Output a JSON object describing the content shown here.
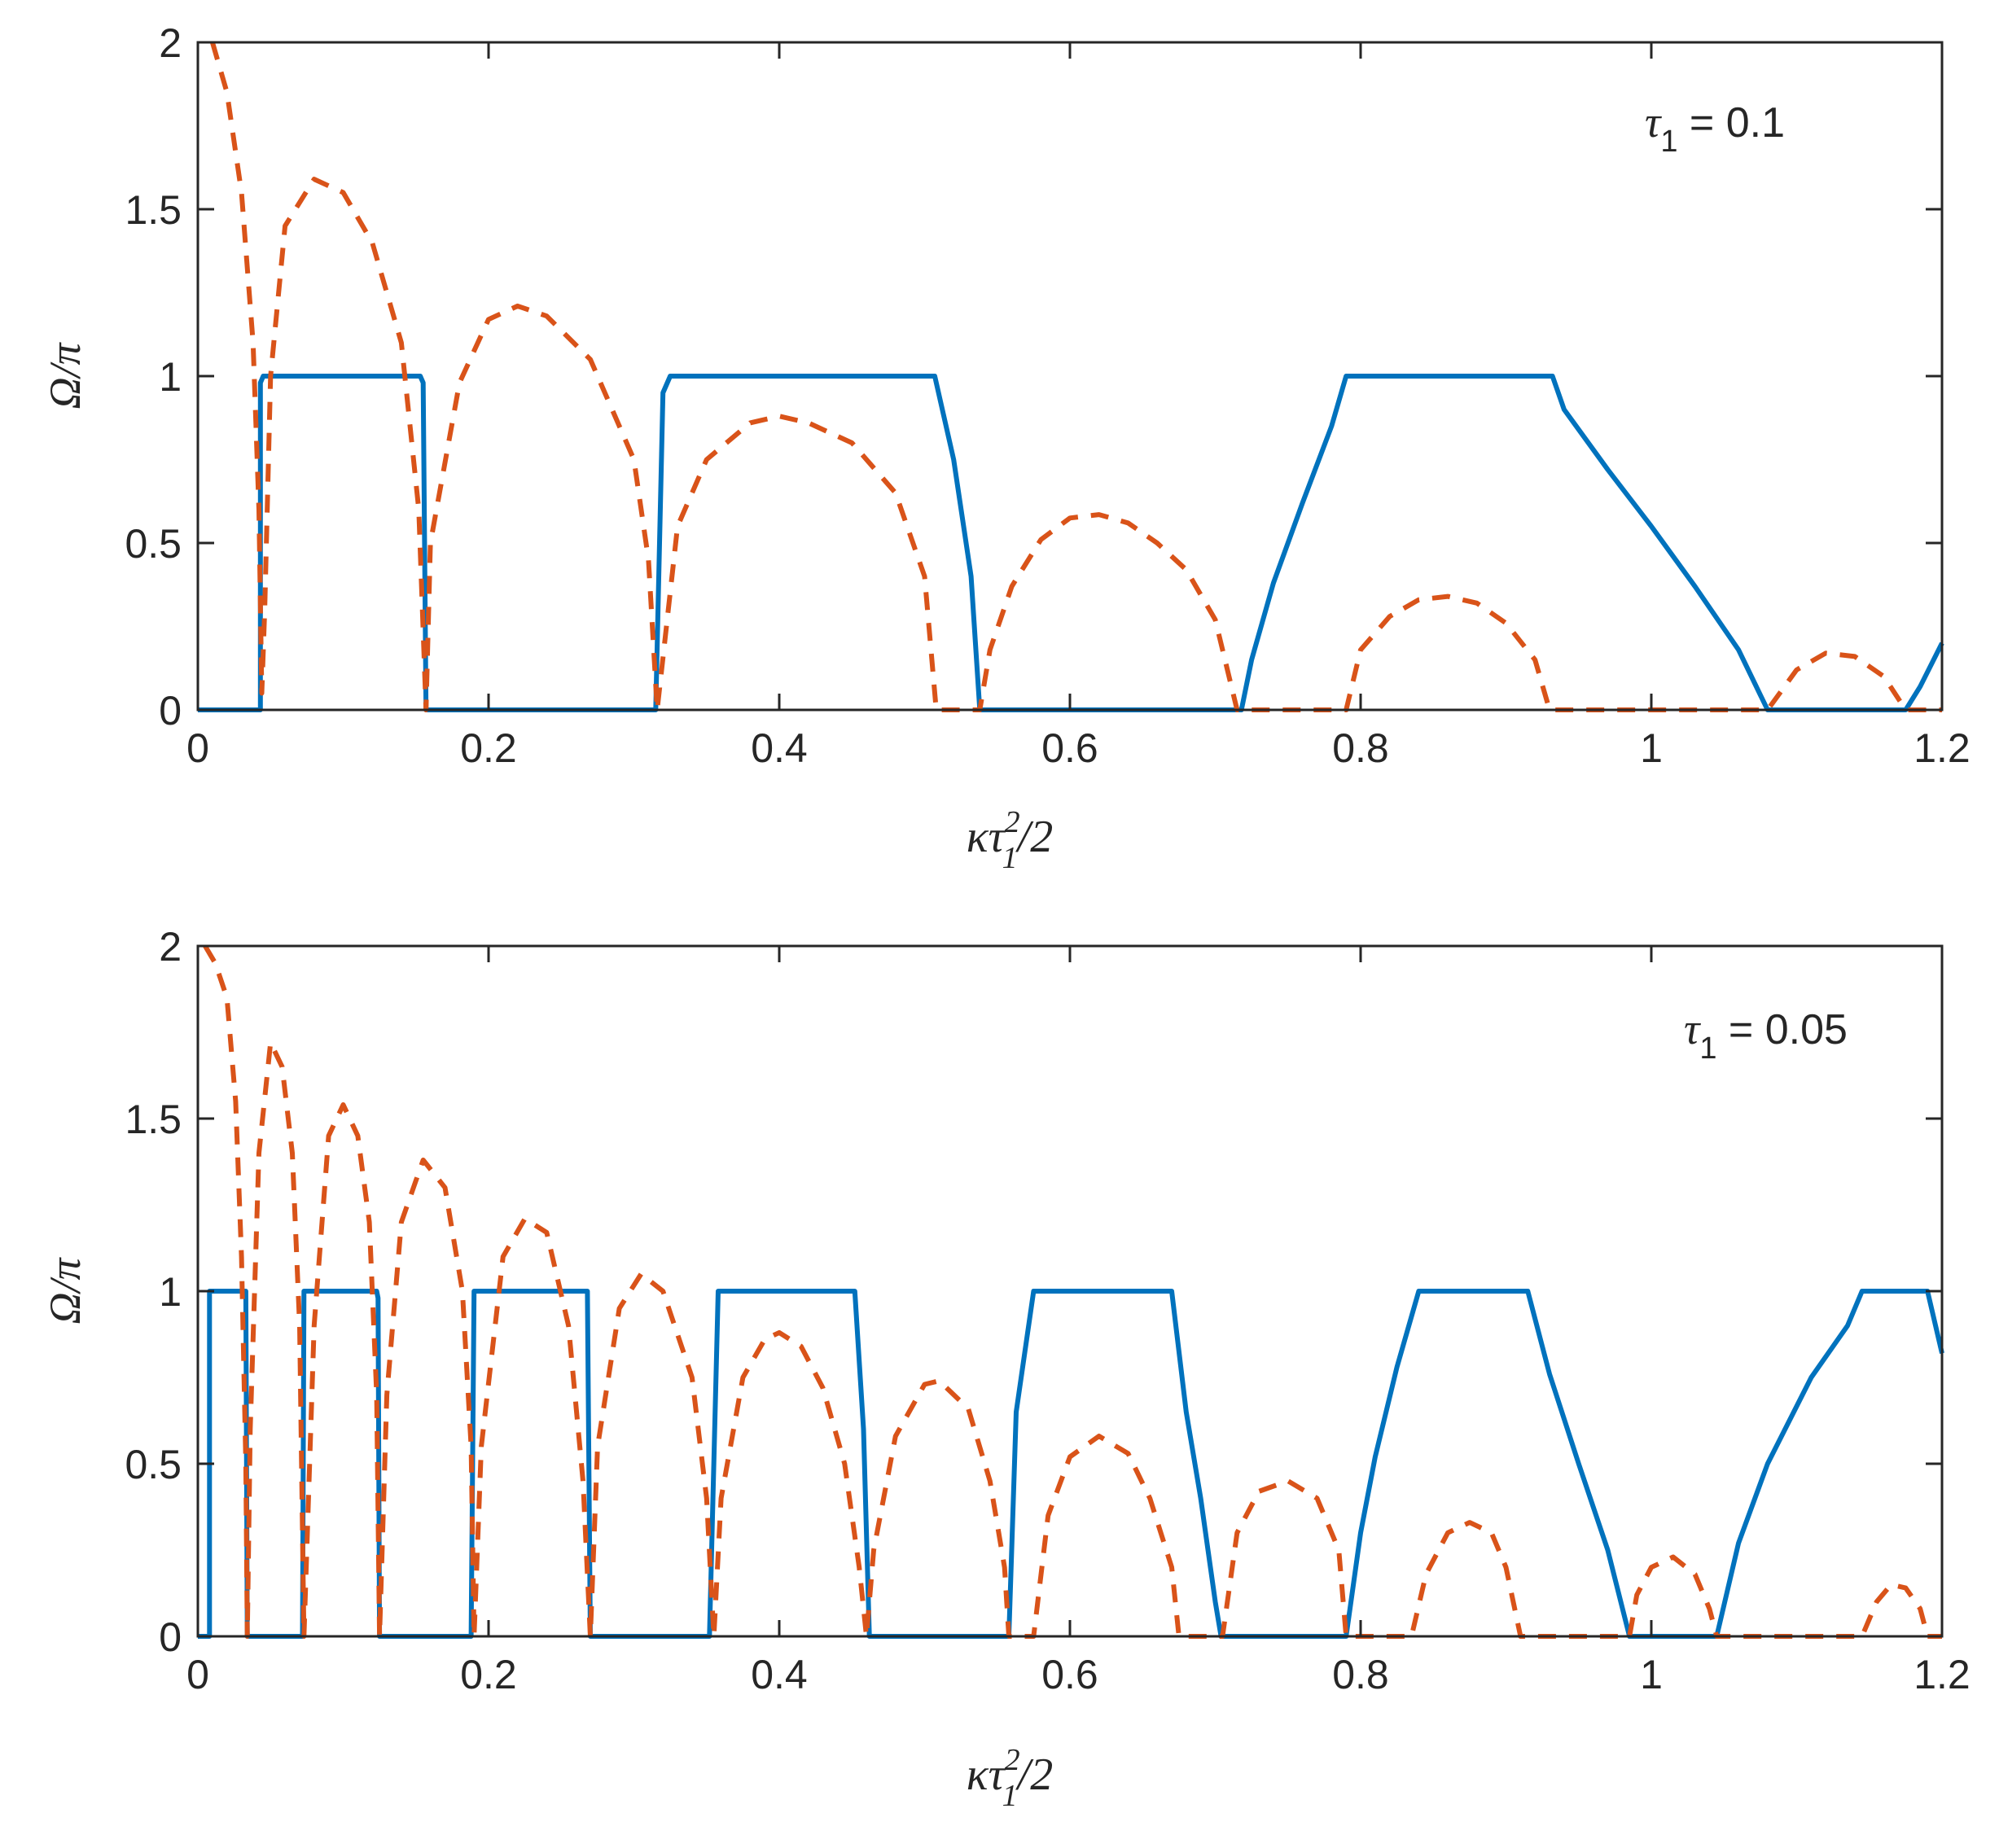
{
  "chart_data": [
    {
      "type": "line",
      "annotation": {
        "symbol": "τ",
        "subscript": "1",
        "text": " = 0.1"
      },
      "xlabel": {
        "main": "κτ",
        "sup": "2",
        "sub": "1",
        "tail": "/2"
      },
      "ylabel": "Ω/π",
      "xlim": [
        0,
        1.2
      ],
      "ylim": [
        0,
        2
      ],
      "xticks": [
        "0",
        "0.2",
        "0.4",
        "0.6",
        "0.8",
        "1",
        "1.2"
      ],
      "xtick_values": [
        0,
        0.2,
        0.4,
        0.6,
        0.8,
        1.0,
        1.2
      ],
      "yticks": [
        "0",
        "0.5",
        "1",
        "1.5",
        "2"
      ],
      "ytick_values": [
        0,
        0.5,
        1,
        1.5,
        2
      ],
      "series": [
        {
          "style": "solid",
          "color": "#0072BD",
          "points": [
            [
              0,
              0
            ],
            [
              0.043,
              0
            ],
            [
              0.043,
              0.98
            ],
            [
              0.045,
              1
            ],
            [
              0.153,
              1
            ],
            [
              0.155,
              0.98
            ],
            [
              0.157,
              0
            ],
            [
              0.315,
              0
            ],
            [
              0.32,
              0.95
            ],
            [
              0.325,
              1
            ],
            [
              0.507,
              1
            ],
            [
              0.52,
              0.75
            ],
            [
              0.532,
              0.4
            ],
            [
              0.538,
              0
            ],
            [
              0.718,
              0
            ],
            [
              0.725,
              0.15
            ],
            [
              0.74,
              0.38
            ],
            [
              0.76,
              0.62
            ],
            [
              0.78,
              0.85
            ],
            [
              0.79,
              1
            ],
            [
              0.932,
              1
            ],
            [
              0.94,
              0.9
            ],
            [
              0.97,
              0.72
            ],
            [
              1.0,
              0.55
            ],
            [
              1.03,
              0.37
            ],
            [
              1.06,
              0.18
            ],
            [
              1.08,
              0
            ],
            [
              1.175,
              0
            ],
            [
              1.185,
              0.07
            ],
            [
              1.2,
              0.2
            ]
          ]
        },
        {
          "style": "dashed",
          "color": "#D95319",
          "points": [
            [
              0.01,
              2.0
            ],
            [
              0.02,
              1.85
            ],
            [
              0.03,
              1.55
            ],
            [
              0.038,
              1.1
            ],
            [
              0.042,
              0.6
            ],
            [
              0.044,
              0.05
            ],
            [
              0.046,
              0.3
            ],
            [
              0.05,
              1.0
            ],
            [
              0.06,
              1.45
            ],
            [
              0.08,
              1.59
            ],
            [
              0.1,
              1.55
            ],
            [
              0.12,
              1.4
            ],
            [
              0.14,
              1.1
            ],
            [
              0.152,
              0.6
            ],
            [
              0.157,
              0.0
            ],
            [
              0.16,
              0.5
            ],
            [
              0.18,
              0.98
            ],
            [
              0.2,
              1.17
            ],
            [
              0.22,
              1.21
            ],
            [
              0.24,
              1.18
            ],
            [
              0.27,
              1.05
            ],
            [
              0.3,
              0.75
            ],
            [
              0.31,
              0.45
            ],
            [
              0.316,
              0.0
            ],
            [
              0.33,
              0.55
            ],
            [
              0.35,
              0.75
            ],
            [
              0.38,
              0.86
            ],
            [
              0.4,
              0.88
            ],
            [
              0.42,
              0.86
            ],
            [
              0.45,
              0.8
            ],
            [
              0.48,
              0.65
            ],
            [
              0.5,
              0.4
            ],
            [
              0.508,
              0.0
            ],
            [
              0.538,
              0.0
            ],
            [
              0.545,
              0.18
            ],
            [
              0.56,
              0.37
            ],
            [
              0.58,
              0.51
            ],
            [
              0.6,
              0.575
            ],
            [
              0.62,
              0.585
            ],
            [
              0.64,
              0.56
            ],
            [
              0.66,
              0.5
            ],
            [
              0.68,
              0.42
            ],
            [
              0.7,
              0.27
            ],
            [
              0.715,
              0.0
            ],
            [
              0.79,
              0.0
            ],
            [
              0.8,
              0.18
            ],
            [
              0.82,
              0.28
            ],
            [
              0.84,
              0.33
            ],
            [
              0.86,
              0.34
            ],
            [
              0.88,
              0.32
            ],
            [
              0.9,
              0.26
            ],
            [
              0.92,
              0.15
            ],
            [
              0.93,
              0.0
            ],
            [
              1.08,
              0.0
            ],
            [
              1.1,
              0.12
            ],
            [
              1.12,
              0.17
            ],
            [
              1.14,
              0.16
            ],
            [
              1.16,
              0.1
            ],
            [
              1.175,
              0.0
            ],
            [
              1.2,
              0.0
            ]
          ]
        }
      ]
    },
    {
      "type": "line",
      "annotation": {
        "symbol": "τ",
        "subscript": "1",
        "text": " = 0.05"
      },
      "xlabel": {
        "main": "κτ",
        "sup": "2",
        "sub": "1",
        "tail": "/2"
      },
      "ylabel": "Ω/π",
      "xlim": [
        0,
        1.2
      ],
      "ylim": [
        0,
        2
      ],
      "xticks": [
        "0",
        "0.2",
        "0.4",
        "0.6",
        "0.8",
        "1",
        "1.2"
      ],
      "xtick_values": [
        0,
        0.2,
        0.4,
        0.6,
        0.8,
        1.0,
        1.2
      ],
      "yticks": [
        "0",
        "0.5",
        "1",
        "1.5",
        "2"
      ],
      "ytick_values": [
        0,
        0.5,
        1,
        1.5,
        2
      ],
      "series": [
        {
          "style": "solid",
          "color": "#0072BD",
          "points": [
            [
              0,
              0
            ],
            [
              0.008,
              0
            ],
            [
              0.008,
              1
            ],
            [
              0.033,
              1
            ],
            [
              0.034,
              0
            ],
            [
              0.072,
              0
            ],
            [
              0.073,
              1
            ],
            [
              0.123,
              1
            ],
            [
              0.124,
              0.98
            ],
            [
              0.125,
              0
            ],
            [
              0.188,
              0
            ],
            [
              0.19,
              1
            ],
            [
              0.268,
              1
            ],
            [
              0.27,
              0
            ],
            [
              0.352,
              0
            ],
            [
              0.358,
              1
            ],
            [
              0.452,
              1
            ],
            [
              0.458,
              0.6
            ],
            [
              0.462,
              0
            ],
            [
              0.558,
              0
            ],
            [
              0.563,
              0.65
            ],
            [
              0.575,
              1
            ],
            [
              0.67,
              1
            ],
            [
              0.68,
              0.65
            ],
            [
              0.69,
              0.4
            ],
            [
              0.7,
              0.1
            ],
            [
              0.704,
              0
            ],
            [
              0.79,
              0
            ],
            [
              0.8,
              0.3
            ],
            [
              0.81,
              0.52
            ],
            [
              0.825,
              0.78
            ],
            [
              0.84,
              1
            ],
            [
              0.915,
              1
            ],
            [
              0.93,
              0.76
            ],
            [
              0.95,
              0.5
            ],
            [
              0.97,
              0.25
            ],
            [
              0.985,
              0
            ],
            [
              1.045,
              0
            ],
            [
              1.06,
              0.27
            ],
            [
              1.08,
              0.5
            ],
            [
              1.11,
              0.75
            ],
            [
              1.135,
              0.9
            ],
            [
              1.145,
              1
            ],
            [
              1.19,
              1
            ],
            [
              1.2,
              0.82
            ]
          ]
        },
        {
          "style": "dashed",
          "color": "#D95319",
          "points": [
            [
              0.005,
              2.0
            ],
            [
              0.012,
              1.95
            ],
            [
              0.02,
              1.85
            ],
            [
              0.026,
              1.55
            ],
            [
              0.03,
              1.1
            ],
            [
              0.033,
              0.5
            ],
            [
              0.034,
              0.0
            ],
            [
              0.036,
              0.6
            ],
            [
              0.042,
              1.4
            ],
            [
              0.05,
              1.72
            ],
            [
              0.058,
              1.65
            ],
            [
              0.065,
              1.4
            ],
            [
              0.07,
              0.9
            ],
            [
              0.072,
              0.3
            ],
            [
              0.073,
              0.0
            ],
            [
              0.08,
              0.9
            ],
            [
              0.09,
              1.45
            ],
            [
              0.1,
              1.54
            ],
            [
              0.11,
              1.45
            ],
            [
              0.118,
              1.2
            ],
            [
              0.123,
              0.7
            ],
            [
              0.125,
              0.0
            ],
            [
              0.13,
              0.7
            ],
            [
              0.14,
              1.2
            ],
            [
              0.155,
              1.38
            ],
            [
              0.17,
              1.3
            ],
            [
              0.182,
              1.0
            ],
            [
              0.188,
              0.55
            ],
            [
              0.19,
              0.0
            ],
            [
              0.195,
              0.55
            ],
            [
              0.21,
              1.1
            ],
            [
              0.225,
              1.21
            ],
            [
              0.24,
              1.17
            ],
            [
              0.255,
              0.9
            ],
            [
              0.265,
              0.45
            ],
            [
              0.27,
              0.0
            ],
            [
              0.275,
              0.55
            ],
            [
              0.29,
              0.95
            ],
            [
              0.305,
              1.05
            ],
            [
              0.32,
              1.0
            ],
            [
              0.34,
              0.75
            ],
            [
              0.35,
              0.4
            ],
            [
              0.355,
              0.0
            ],
            [
              0.36,
              0.4
            ],
            [
              0.375,
              0.75
            ],
            [
              0.39,
              0.86
            ],
            [
              0.4,
              0.88
            ],
            [
              0.415,
              0.84
            ],
            [
              0.43,
              0.72
            ],
            [
              0.445,
              0.5
            ],
            [
              0.455,
              0.2
            ],
            [
              0.46,
              0.0
            ],
            [
              0.465,
              0.25
            ],
            [
              0.48,
              0.58
            ],
            [
              0.5,
              0.73
            ],
            [
              0.51,
              0.74
            ],
            [
              0.53,
              0.66
            ],
            [
              0.545,
              0.45
            ],
            [
              0.555,
              0.2
            ],
            [
              0.558,
              0.0
            ],
            [
              0.575,
              0.0
            ],
            [
              0.585,
              0.35
            ],
            [
              0.6,
              0.52
            ],
            [
              0.62,
              0.58
            ],
            [
              0.64,
              0.53
            ],
            [
              0.655,
              0.4
            ],
            [
              0.67,
              0.2
            ],
            [
              0.675,
              0.0
            ],
            [
              0.705,
              0.0
            ],
            [
              0.715,
              0.3
            ],
            [
              0.73,
              0.42
            ],
            [
              0.75,
              0.45
            ],
            [
              0.77,
              0.4
            ],
            [
              0.785,
              0.25
            ],
            [
              0.79,
              0.0
            ],
            [
              0.835,
              0.0
            ],
            [
              0.845,
              0.18
            ],
            [
              0.86,
              0.3
            ],
            [
              0.875,
              0.33
            ],
            [
              0.89,
              0.3
            ],
            [
              0.9,
              0.2
            ],
            [
              0.91,
              0.0
            ],
            [
              0.985,
              0.0
            ],
            [
              0.99,
              0.12
            ],
            [
              1.0,
              0.2
            ],
            [
              1.015,
              0.23
            ],
            [
              1.03,
              0.18
            ],
            [
              1.04,
              0.08
            ],
            [
              1.045,
              0.0
            ],
            [
              1.145,
              0.0
            ],
            [
              1.155,
              0.1
            ],
            [
              1.165,
              0.15
            ],
            [
              1.175,
              0.14
            ],
            [
              1.185,
              0.08
            ],
            [
              1.19,
              0.0
            ],
            [
              1.2,
              0.0
            ]
          ]
        }
      ]
    }
  ]
}
